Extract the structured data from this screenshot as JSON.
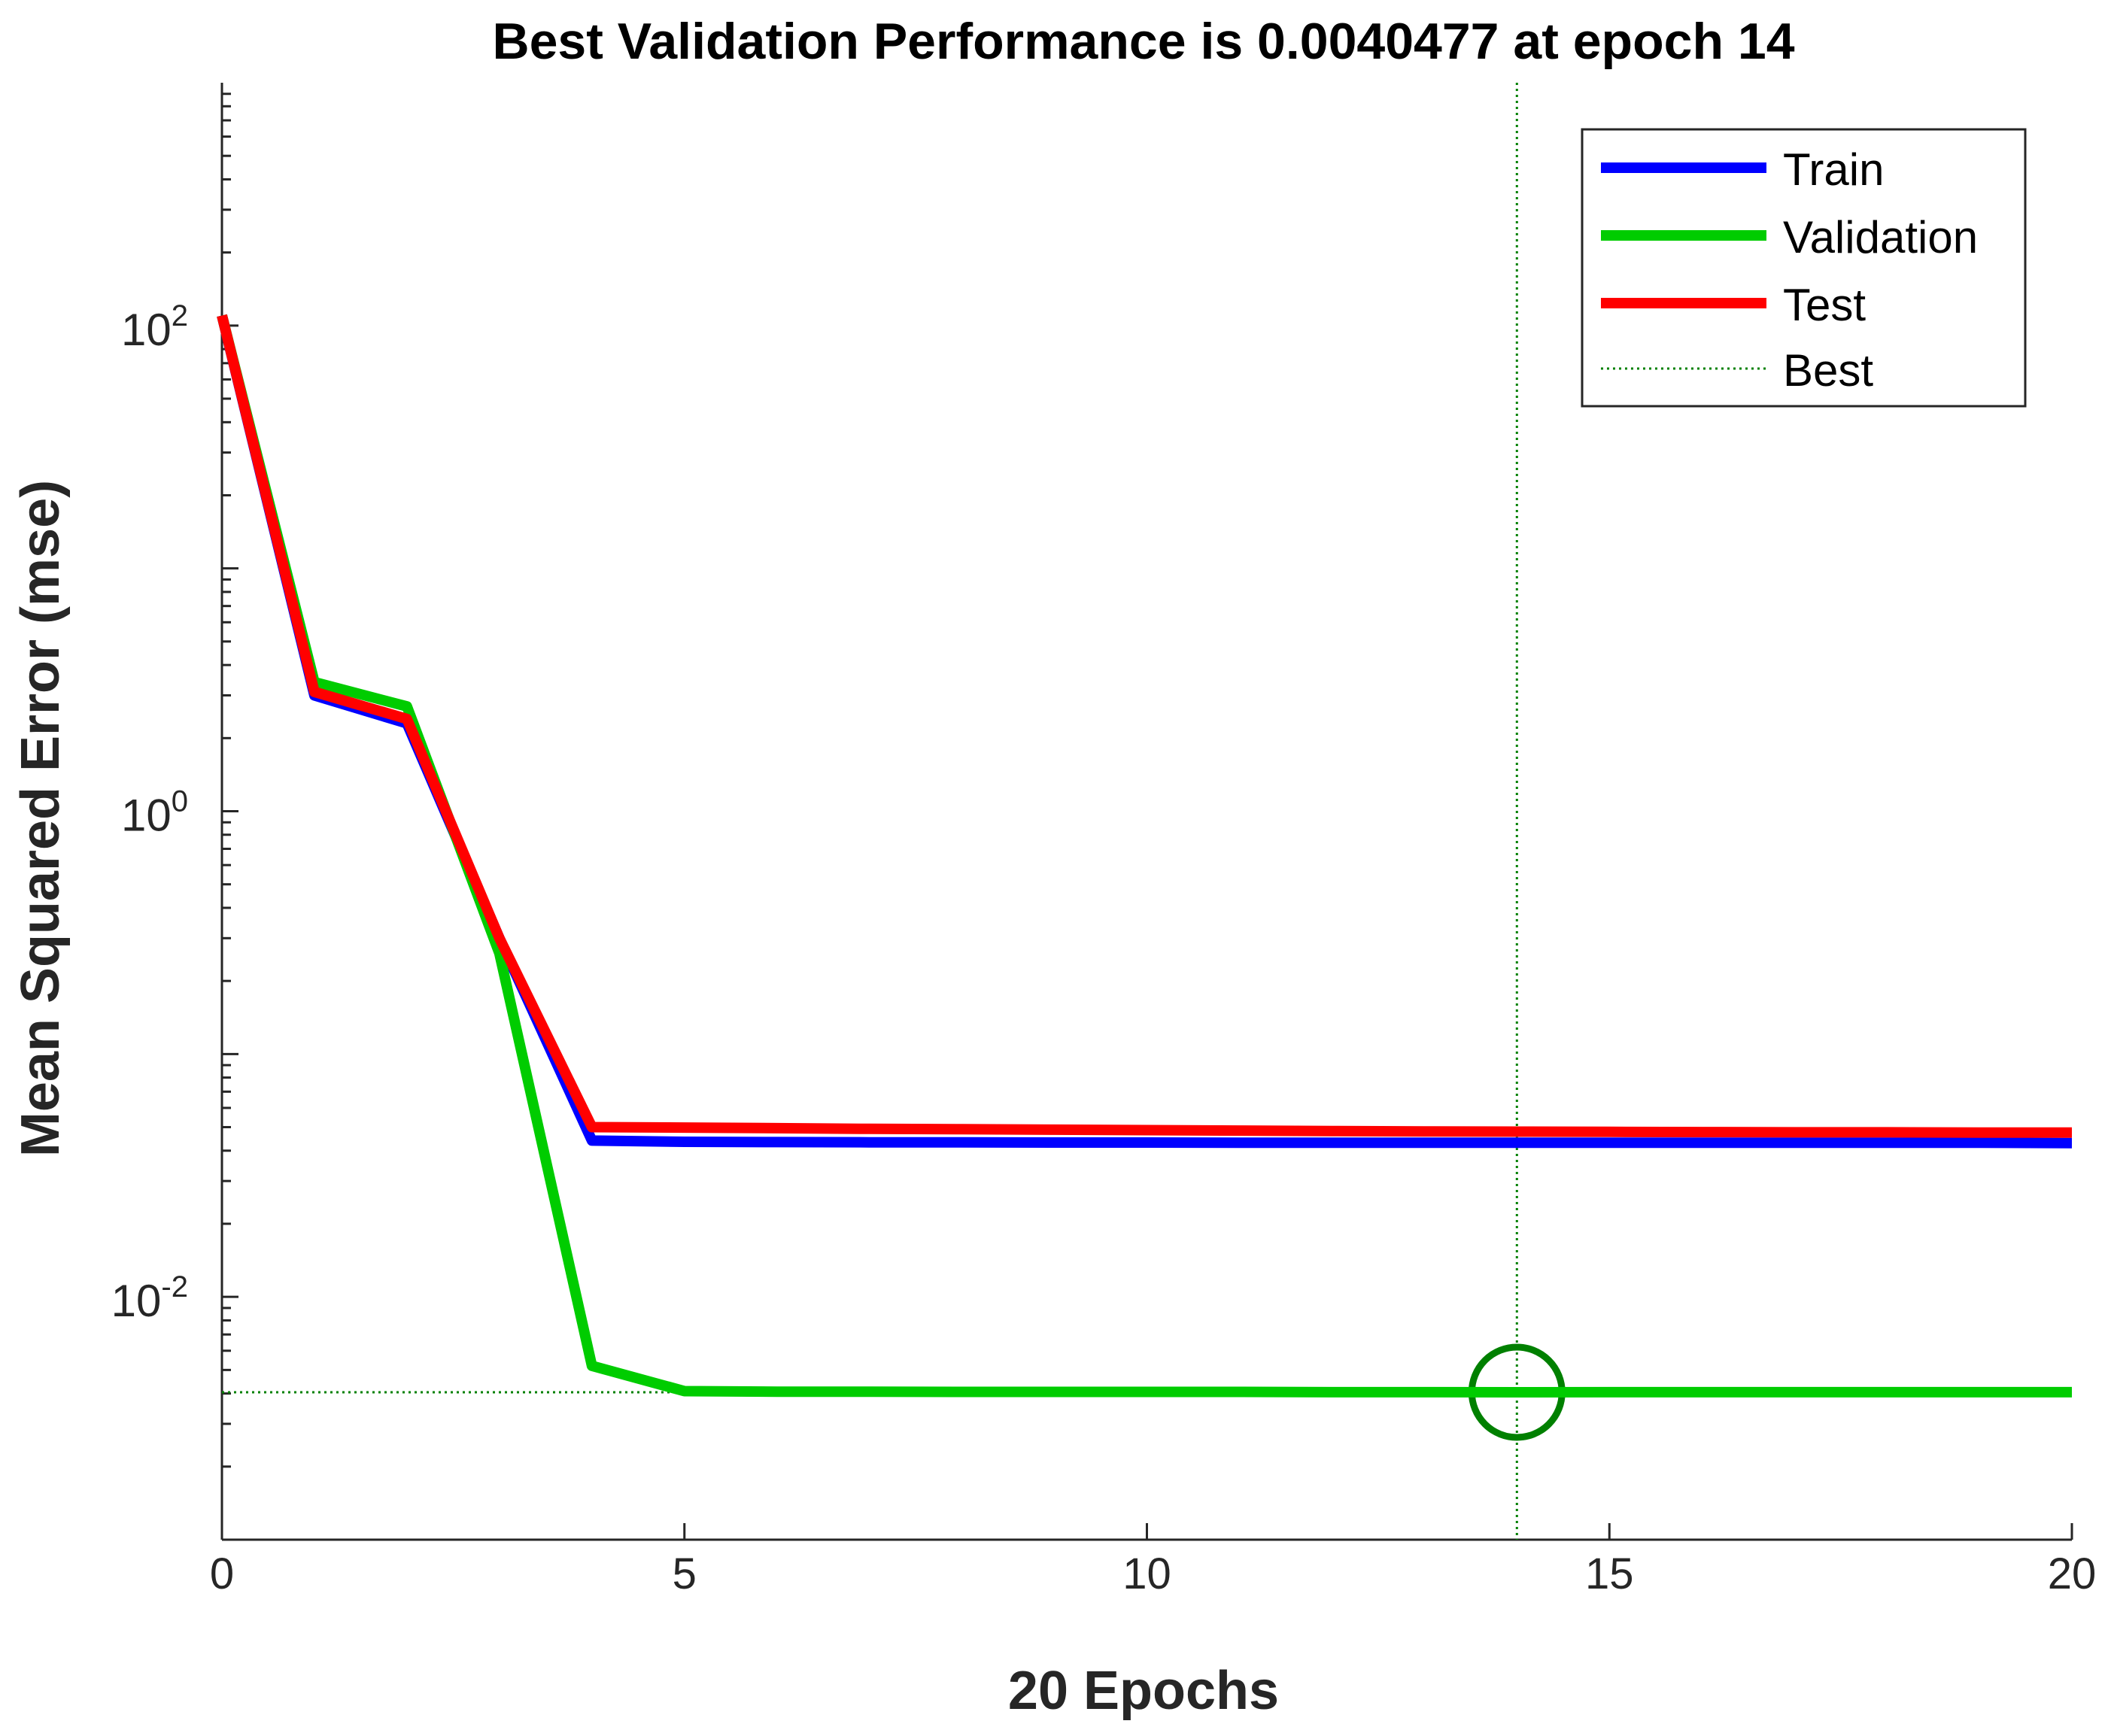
{
  "chart_data": {
    "type": "line",
    "title": "Best Validation Performance is 0.0040477 at epoch 14",
    "xlabel": "20 Epochs",
    "ylabel": "Mean Squared Error  (mse)",
    "xlim": [
      0,
      20
    ],
    "ylim_log10": [
      -3,
      3
    ],
    "yscale": "log",
    "grid": false,
    "x_ticks": [
      "0",
      "5",
      "10",
      "15",
      "20"
    ],
    "y_ticks": [
      {
        "base": "10",
        "exp": "2",
        "value": 100
      },
      {
        "base": "10",
        "exp": "0",
        "value": 1
      },
      {
        "base": "10",
        "exp": "-2",
        "value": 0.01
      }
    ],
    "x": [
      0,
      1,
      2,
      3,
      4,
      5,
      6,
      7,
      8,
      9,
      10,
      11,
      12,
      13,
      14,
      15,
      16,
      17,
      18,
      19,
      20
    ],
    "series": [
      {
        "name": "Train",
        "color": "#0000ff",
        "values": [
          110,
          3.0,
          2.3,
          0.3,
          0.044,
          0.0435,
          0.0434,
          0.0433,
          0.0433,
          0.0432,
          0.0432,
          0.0431,
          0.0431,
          0.0431,
          0.0431,
          0.0431,
          0.0431,
          0.0431,
          0.0431,
          0.0431,
          0.043
        ]
      },
      {
        "name": "Validation",
        "color": "#00cc00",
        "values": [
          110,
          3.4,
          2.7,
          0.26,
          0.0052,
          0.00409,
          0.00407,
          0.00407,
          0.00406,
          0.00406,
          0.00406,
          0.00406,
          0.00405,
          0.00405,
          0.0040477,
          0.00405,
          0.00405,
          0.00405,
          0.00405,
          0.00405,
          0.00405
        ]
      },
      {
        "name": "Test",
        "color": "#ff0000",
        "values": [
          110,
          3.1,
          2.4,
          0.3,
          0.05,
          0.0498,
          0.0495,
          0.0492,
          0.049,
          0.0488,
          0.0486,
          0.0484,
          0.0482,
          0.048,
          0.0479,
          0.0478,
          0.0477,
          0.0476,
          0.0476,
          0.0475,
          0.0475
        ]
      }
    ],
    "best": {
      "name": "Best",
      "epoch": 14,
      "value": 0.0040477,
      "color": "#008000"
    },
    "legend": {
      "placement": "top-right",
      "entries": [
        "Train",
        "Validation",
        "Test",
        "Best"
      ]
    }
  }
}
